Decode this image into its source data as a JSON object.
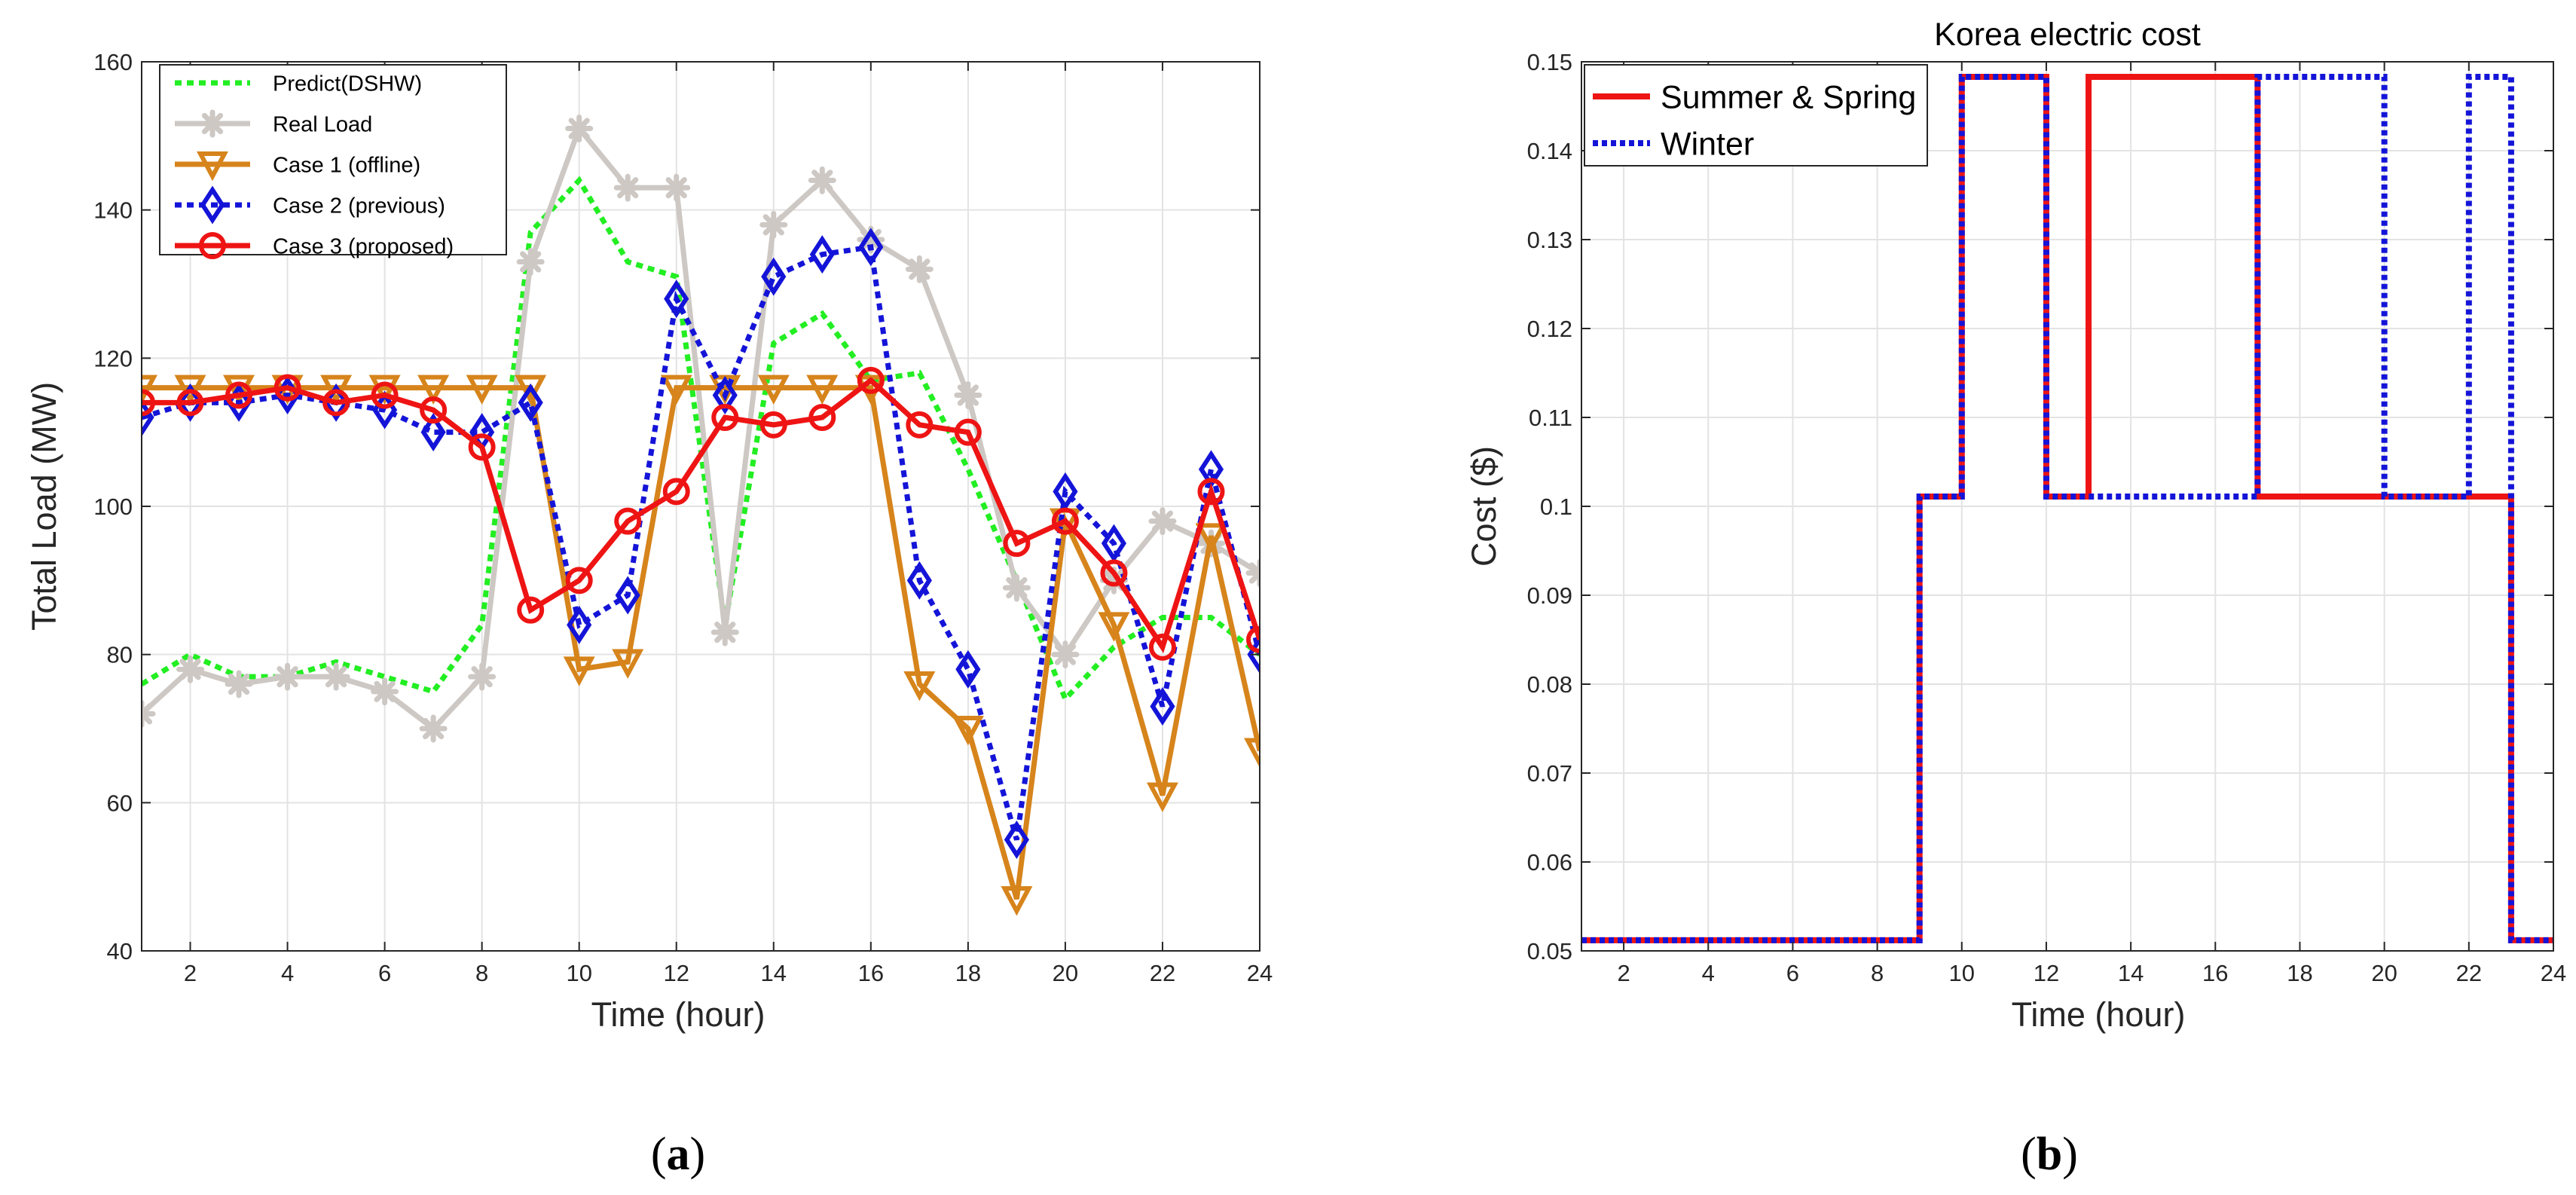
{
  "chart_data": [
    {
      "type": "line",
      "caption": "a",
      "title": "",
      "xlabel": "Time (hour)",
      "ylabel": "Total Load (MW)",
      "xlim": [
        1,
        24
      ],
      "ylim": [
        40,
        160
      ],
      "grid": true,
      "legend_position": "top-left",
      "xticks": [
        "2",
        "4",
        "6",
        "8",
        "10",
        "12",
        "14",
        "16",
        "18",
        "20",
        "22",
        "24"
      ],
      "yticks": [
        "40",
        "60",
        "80",
        "100",
        "120",
        "140",
        "160"
      ],
      "x": [
        1,
        2,
        3,
        4,
        5,
        6,
        7,
        8,
        9,
        10,
        11,
        12,
        13,
        14,
        15,
        16,
        17,
        18,
        19,
        20,
        21,
        22,
        23,
        24
      ],
      "series": [
        {
          "name": "Predict(DSHW)",
          "color": "#22ee22",
          "style": "dotted",
          "marker": "none",
          "values": [
            76,
            80,
            77,
            77,
            79,
            77,
            75,
            84,
            137,
            144,
            133,
            131,
            84,
            122,
            126,
            117,
            118,
            105,
            90,
            74,
            81,
            85,
            85,
            80
          ]
        },
        {
          "name": "Real Load",
          "color": "#cdc8c4",
          "style": "solid",
          "marker": "asterisk",
          "values": [
            72,
            78,
            76,
            77,
            77,
            75,
            70,
            77,
            133,
            151,
            143,
            143,
            83,
            138,
            144,
            136,
            132,
            115,
            89,
            80,
            90,
            98,
            95,
            91
          ]
        },
        {
          "name": "Case 1 (offline)",
          "color": "#d6841b",
          "style": "solid",
          "marker": "triangle-down",
          "values": [
            116,
            116,
            116,
            116,
            116,
            116,
            116,
            116,
            116,
            78,
            79,
            116,
            116,
            116,
            116,
            116,
            76,
            70,
            47,
            98,
            84,
            61,
            96,
            67
          ]
        },
        {
          "name": "Case 2 (previous)",
          "color": "#1414d8",
          "style": "dotted",
          "marker": "diamond",
          "values": [
            112,
            114,
            114,
            115,
            114,
            113,
            110,
            110,
            114,
            84,
            88,
            128,
            115,
            131,
            134,
            135,
            90,
            78,
            55,
            102,
            95,
            73,
            105,
            80
          ]
        },
        {
          "name": "Case 3 (proposed)",
          "color": "#ee1414",
          "style": "solid",
          "marker": "circle",
          "values": [
            114,
            114,
            115,
            116,
            114,
            115,
            113,
            108,
            86,
            90,
            98,
            102,
            112,
            111,
            112,
            117,
            111,
            110,
            95,
            98,
            91,
            81,
            102,
            82
          ]
        }
      ]
    },
    {
      "type": "line",
      "caption": "b",
      "title": "Korea electric cost",
      "xlabel": "Time (hour)",
      "ylabel": "Cost ($)",
      "xlim": [
        1,
        24
      ],
      "ylim": [
        0.05,
        0.15
      ],
      "grid": true,
      "legend_position": "top-left",
      "xticks": [
        "2",
        "4",
        "6",
        "8",
        "10",
        "12",
        "14",
        "16",
        "18",
        "20",
        "22",
        "24"
      ],
      "yticks": [
        "0.05",
        "0.06",
        "0.07",
        "0.08",
        "0.09",
        "0.1",
        "0.11",
        "0.12",
        "0.13",
        "0.14",
        "0.15"
      ],
      "series": [
        {
          "name": "Summer & Spring",
          "color": "#ee1414",
          "style": "solid",
          "step": true,
          "x": [
            1,
            9,
            9,
            10,
            10,
            12,
            12,
            13,
            13,
            17,
            17,
            23,
            23,
            24
          ],
          "values": [
            0.0512,
            0.0512,
            0.1011,
            0.1011,
            0.1483,
            0.1483,
            0.1011,
            0.1011,
            0.1483,
            0.1483,
            0.1011,
            0.1011,
            0.0512,
            0.0512
          ]
        },
        {
          "name": "Winter",
          "color": "#1414d8",
          "style": "dotted",
          "step": true,
          "x": [
            1,
            9,
            9,
            10,
            10,
            12,
            12,
            17,
            17,
            20,
            20,
            22,
            22,
            23,
            23,
            24
          ],
          "values": [
            0.0512,
            0.0512,
            0.1011,
            0.1011,
            0.1483,
            0.1483,
            0.1011,
            0.1011,
            0.1483,
            0.1483,
            0.1011,
            0.1011,
            0.1483,
            0.1483,
            0.0512,
            0.0512
          ]
        }
      ]
    }
  ]
}
